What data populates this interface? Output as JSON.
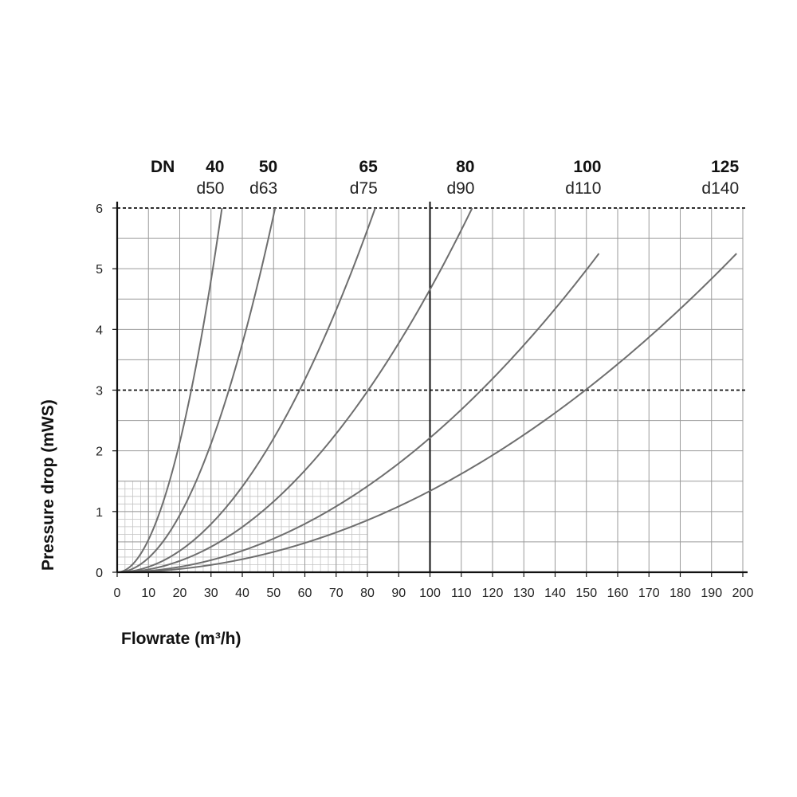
{
  "chart_data": {
    "type": "line",
    "xlabel": "Flowrate (m³/h)",
    "ylabel": "Pressure drop (mWS)",
    "xlim": [
      0,
      200
    ],
    "ylim": [
      0,
      6
    ],
    "x_ticks": [
      "0",
      "10",
      "20",
      "30",
      "40",
      "50",
      "60",
      "70",
      "80",
      "90",
      "100",
      "110",
      "120",
      "130",
      "140",
      "150",
      "160",
      "170",
      "180",
      "190",
      "200"
    ],
    "y_ticks": [
      "0",
      "1",
      "2",
      "3",
      "4",
      "5",
      "6"
    ],
    "dashed_reference_lines_y": [
      3,
      6
    ],
    "bold_reference_line_x": 100,
    "fine_grid_region": {
      "x": [
        0,
        80
      ],
      "y": [
        0,
        1.5
      ]
    },
    "grid": true,
    "legend_header": "DN",
    "series": [
      {
        "name": "40",
        "sub": "d50",
        "x_at_6": 33.5
      },
      {
        "name": "50",
        "sub": "d63",
        "x_at_6": 50.5
      },
      {
        "name": "65",
        "sub": "d75",
        "x_at_6": 82.5
      },
      {
        "name": "80",
        "sub": "d90",
        "x_at_6": 113.5
      },
      {
        "name": "100",
        "sub": "d110",
        "x_end": 154,
        "y_end": 5.25
      },
      {
        "name": "125",
        "sub": "d140",
        "x_end": 198,
        "y_end": 5.25
      }
    ],
    "series_color": "#6e6e6e"
  }
}
